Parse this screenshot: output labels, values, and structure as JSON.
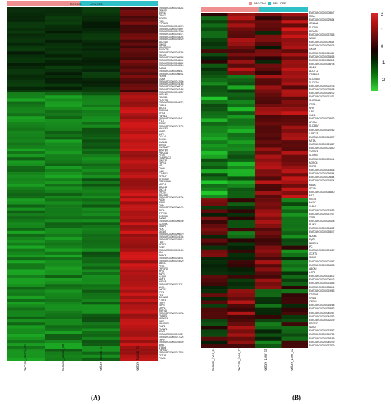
{
  "panelA": {
    "legend": [
      "DECCAN",
      "NELLORE"
    ],
    "groupColors": {
      "DECCAN": "#ef8f8f",
      "NELLORE": "#30c0c7"
    },
    "samples": [
      "Deccani_Muscle_S1",
      "Deccani_Muscle_S2",
      "Nellore_Muscle_S1",
      "Nellore_Muscle_S2"
    ],
    "caption": "(A)",
    "genes": [
      "ENSOARG00000018244",
      "TM4SF1",
      "SCRN3",
      "CPNE7",
      "DIRAS3",
      "FIS1",
      "PTPRM3",
      "ENSOARG00000018073",
      "ENSOARG00000019697",
      "ENSOARG00000007963",
      "ENSOARG00000024474",
      "ENSOARG00000018292",
      "ENSOARG00000016429",
      "SLC44A4",
      "KDKN1",
      "ARNGEF10",
      "PLXDC2P",
      "ENSOARG00000019256",
      "EDNRB",
      "ENSOARG00000008595",
      "ENSOARG00000008641",
      "ENSOARG00000008262",
      "ENSOARG00000005513",
      "RAB38",
      "ENSOARG00000005411",
      "ENSOARG00000008544",
      "FBXO5",
      "ESAM",
      "ENSOARG00000012050",
      "ENSOARG00000015166",
      "ENSOARG00000008747",
      "ENSOARG00000007485",
      "ENSOARG00000016557",
      "AKR1A10",
      "FAM78A",
      "PDGFRB",
      "ENSOARG00000006979",
      "FKBP4",
      "ABCC1",
      "CHCHD6",
      "KIFC3",
      "FGFBL1",
      "ENSOARG00000018411",
      "PTLX",
      "RSPO3",
      "ENSOARG00000013128",
      "NDUFB3",
      "NDRG",
      "ACP5",
      "CCL14",
      "COX4I1",
      "ACAD11",
      "ACNS1",
      "IVNS1ABP",
      "NDUFB9",
      "PRKACA",
      "PITX1",
      "TCAPRAC2",
      "FAM73A",
      "TDPS1",
      "MIF",
      "CDH9",
      "LY6K",
      "CTHRC1",
      "ZBTB47",
      "RETREG2",
      "TMEM184A",
      "MRPL1",
      "SLCA14",
      "SNC14",
      "ZNF511",
      "SLC35A4",
      "ENSOARG00000018336",
      "PLOD",
      "ISP9D",
      "CD54",
      "ENSOARG00000006476",
      "PKD9",
      "CYP251",
      "CCDC88",
      "RAB8B",
      "ENSOARG00000005440",
      "GATD3A",
      "GRAP5",
      "PEX3",
      "DLGD5",
      "ENSOARG00000005670",
      "ENSOARG00000024108",
      "ENSOARG00000025618",
      "LRP1",
      "AP3S2",
      "GRP7",
      "ENSOARG00000025403",
      "ICN",
      "GRAP2",
      "ENSOARG00000018441",
      "ENSOARG00000015529",
      "UBE2D",
      "PNTA",
      "TNFSF10",
      "IRF4",
      "HAPS",
      "NASHS",
      "MAFB",
      "HSPA8",
      "ENSOARG00000012211",
      "NKG1",
      "HAPM1",
      "ETFA",
      "FD1",
      "SCNN1G",
      "PTSP1",
      "TRIF2",
      "ZAPG",
      "CDPG1",
      "RNF165",
      "ENSOARG00000034030",
      "FSAEE2",
      "ARPGD3",
      "WDR",
      "ARHGEF1",
      "TIMP1",
      "TRABP1",
      "SPMR",
      "ENSOARG00000011767",
      "ENSOARG00000017326",
      "TFPI2",
      "ENSOARG00000016549",
      "NUB1",
      "BTBD4",
      "FGFR10",
      "ENSOARG00000017508",
      "CPT1B",
      "PSMD4"
    ]
  },
  "panelB": {
    "legend": [
      "DECCAN",
      "NELLORE"
    ],
    "groupColors": {
      "DECCAN": "#ef8f8f",
      "NELLORE": "#30c0c7"
    },
    "samples": [
      "Deccani_liver_S1",
      "Deccani_liver_S2",
      "Nellore_Liver_S1",
      "Nellore_Liver_S2"
    ],
    "caption": "(B)",
    "genes": [
      "ENSOARG00000005347",
      "RIDA",
      "ENSOARG00000029514",
      "COL4A6",
      "SLC2A5",
      "DIRAS3",
      "ENSOARG00000037815",
      "NEIL2",
      "ENSOARG00000009119",
      "ENSOARG00000026673",
      "GATM",
      "ENSOARG00000011185",
      "ENSOARG00000035915",
      "ENSOARG00000032442",
      "ENSOARG00000036748",
      "INHBA",
      "ACOT12",
      "CREB3L3",
      "SLC25A47",
      "SLC13A5",
      "ENSOARG00000022276",
      "ENSOARG00000025618",
      "ENSOARG00000026232",
      "ENSOARG00000011920",
      "SLC25A34",
      "CES4A",
      "NHS",
      "LIPG",
      "VNN1",
      "ENSOARG00000005512",
      "APOA5",
      "SLC38A7",
      "ENSOARG00000010282",
      "LRRC23",
      "ENSOARG00000040477",
      "MT1A",
      "ENSOARG00000021487",
      "ENSOARG00000001350",
      "TMTSF2",
      "SLITRK4",
      "ENSOARG00000009144",
      "MORC4",
      "RXRG",
      "ENSOARG00000015306",
      "ENSOARG00000036084",
      "ENSOARG00000005664",
      "ENSOARG00000018274",
      "MBLA",
      "GPX3",
      "ENSOARG00000036860",
      "MT2",
      "ISG15",
      "MYOC",
      "VLDLR",
      "ENSOARG00000033653",
      "ENSOARG00000037207",
      "TSR2",
      "ENSOARG00000020448",
      "PLIN2",
      "ENSOARG00000034652",
      "ENSOARG00000035047",
      "NUCB1",
      "Fgf21",
      "B4GAT1",
      "PC",
      "ENSOARG00000001987",
      "GCNT3",
      "S100B",
      "ENSOARG00000001267",
      "ENSOARG00000006838",
      "ABCA9",
      "LRP3",
      "ENSOARG00000033572",
      "ENSOARG00000006042",
      "ENSOARG00000031455",
      "ENSOARG00000035541",
      "ENSOARG00000019983",
      "PRSS33",
      "GRIA1",
      "CAPN6",
      "ENSOARG00000016288",
      "ENSOARG00000038952",
      "ENSOARG00000040287",
      "ENSOARG00000040452",
      "ENSOARG00000032149",
      "PTGER2",
      "ILDR2",
      "ENSOARG00000033497",
      "ENSOARG00000040789",
      "ENSOARG00000039159",
      "ENSOARG00000040249",
      "ENSOARG00000037339"
    ]
  },
  "colorScale": {
    "ticks": [
      "2",
      "1",
      "0",
      "-1",
      "-2"
    ],
    "high": "#d62a2a",
    "mid": "#000000",
    "low": "#3bd63b"
  }
}
